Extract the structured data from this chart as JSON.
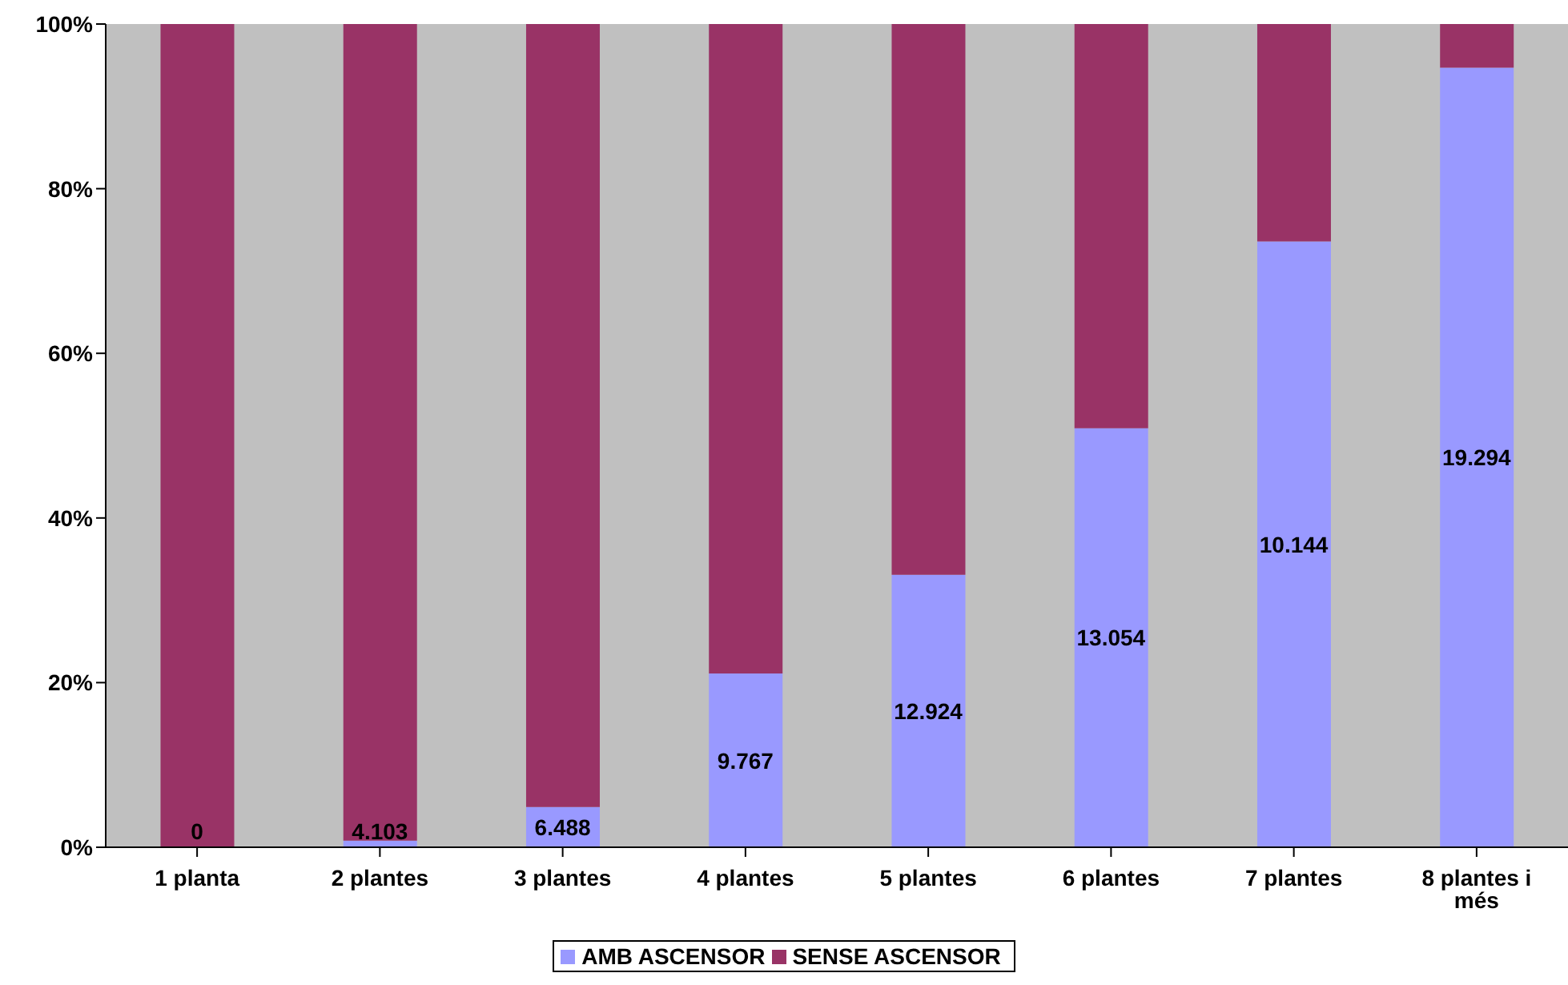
{
  "chart_data": {
    "type": "bar",
    "stacked": true,
    "categories": [
      "1 planta",
      "2 plantes",
      "3 plantes",
      "4 plantes",
      "5 plantes",
      "6 plantes",
      "7 plantes",
      "8 plantes i més"
    ],
    "series": [
      {
        "name": "AMB ASCENSOR",
        "color": "#9999ff",
        "values": [
          0,
          0.8,
          4.9,
          21.1,
          33.1,
          50.9,
          73.6,
          94.7
        ]
      },
      {
        "name": "SENSE ASCENSOR",
        "color": "#993366",
        "values": [
          100,
          99.2,
          95.1,
          78.9,
          66.9,
          49.1,
          26.4,
          5.3
        ]
      }
    ],
    "ylim": [
      0,
      100
    ],
    "yticks": [
      {
        "value": 0,
        "label": "0%"
      },
      {
        "value": 20,
        "label": "20%"
      },
      {
        "value": 40,
        "label": "40%"
      },
      {
        "value": 60,
        "label": "60%"
      },
      {
        "value": 80,
        "label": "80%"
      },
      {
        "value": 100,
        "label": "100%"
      }
    ],
    "annotations": [
      "0",
      "4.103",
      "6.488",
      "9.767",
      "12.924",
      "13.054",
      "10.144",
      "19.294"
    ],
    "grid": false,
    "legend": "bottom"
  }
}
